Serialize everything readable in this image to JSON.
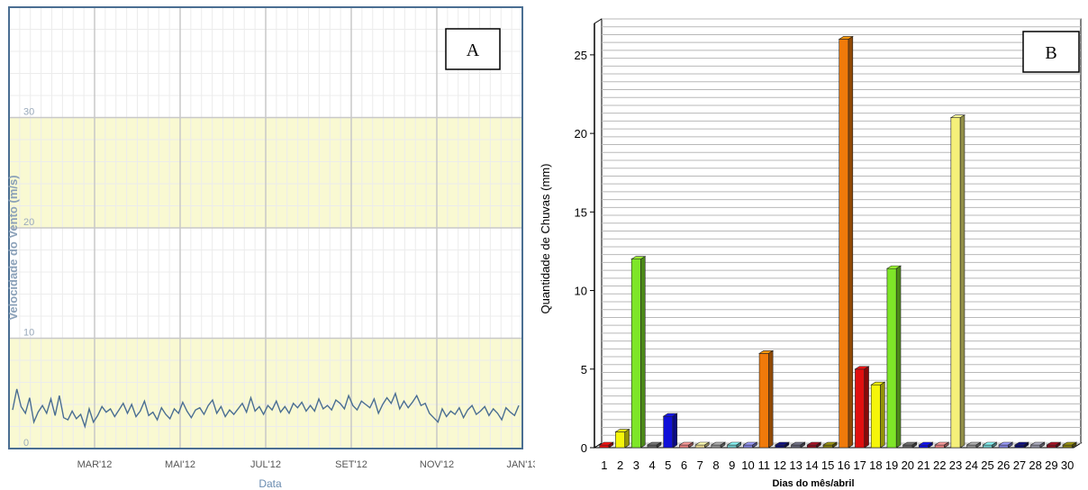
{
  "chart_data": [
    {
      "type": "line",
      "panel_label": "A",
      "xlabel": "Data",
      "ylabel": "Velocidade do Vento (m/s)",
      "ylim": [
        0,
        40
      ],
      "yticks": [
        "0",
        "10",
        "20",
        "30"
      ],
      "xticks": [
        "MAR'12",
        "MAI'12",
        "JUL'12",
        "SET'12",
        "NOV'12",
        "JAN'13"
      ],
      "xtick_positions_months": [
        2,
        4,
        6,
        8,
        10,
        12
      ],
      "x_range_months": [
        0,
        12
      ],
      "bands": [
        {
          "from": 0,
          "to": 10,
          "color": "#f9f9d2"
        },
        {
          "from": 20,
          "to": 30,
          "color": "#f9f9d2"
        }
      ],
      "grid": true,
      "line_color": "#4a6e92",
      "series": [
        {
          "values": [
            3.5,
            5.4,
            3.8,
            3.2,
            4.6,
            2.4,
            3.3,
            3.9,
            3.2,
            4.5,
            3.0,
            4.8,
            2.8,
            2.6,
            3.4,
            2.7,
            3.1,
            2.0,
            3.6,
            2.4,
            3.0,
            3.8,
            3.3,
            3.6,
            2.9,
            3.5,
            4.1,
            3.2,
            4.0,
            2.9,
            3.4,
            4.3,
            3.0,
            3.3,
            2.6,
            3.7,
            3.1,
            2.7,
            3.6,
            3.2,
            4.2,
            3.4,
            2.8,
            3.5,
            3.7,
            3.1,
            3.9,
            4.4,
            3.2,
            3.8,
            2.9,
            3.5,
            3.1,
            3.6,
            4.1,
            3.3,
            4.6,
            3.4,
            3.8,
            3.1,
            3.9,
            3.5,
            4.3,
            3.3,
            3.8,
            3.2,
            4.1,
            3.7,
            4.2,
            3.4,
            3.9,
            3.4,
            4.5,
            3.6,
            3.9,
            3.5,
            4.4,
            4.1,
            3.6,
            4.8,
            3.9,
            3.5,
            4.3,
            4.0,
            3.7,
            4.5,
            3.2,
            4.0,
            4.6,
            4.1,
            5.0,
            3.6,
            4.3,
            3.7,
            4.2,
            4.8,
            3.9,
            4.1,
            3.2,
            2.8,
            2.4,
            3.6,
            2.9,
            3.4,
            3.1,
            3.7,
            2.8,
            3.5,
            3.9,
            3.1,
            3.4,
            3.8,
            3.0,
            3.6,
            3.2,
            2.6,
            3.7,
            3.3,
            3.0,
            3.9
          ]
        }
      ]
    },
    {
      "type": "bar",
      "panel_label": "B",
      "xlabel": "Dias do mês/abril",
      "ylabel": "Quantidade de Chuvas (mm)",
      "ylim": [
        0,
        27
      ],
      "yticks": [
        0,
        5,
        10,
        15,
        20,
        25
      ],
      "grid": true,
      "categories": [
        "1",
        "2",
        "3",
        "4",
        "5",
        "6",
        "7",
        "8",
        "9",
        "10",
        "11",
        "12",
        "13",
        "14",
        "15",
        "16",
        "17",
        "18",
        "19",
        "20",
        "21",
        "22",
        "23",
        "24",
        "25",
        "26",
        "27",
        "28",
        "29",
        "30"
      ],
      "values": [
        0,
        1,
        12,
        0,
        2,
        0,
        0,
        0,
        0,
        0,
        6,
        0,
        0,
        0,
        0,
        26,
        5,
        4,
        11.4,
        0,
        0,
        0,
        21,
        0,
        0,
        0,
        0,
        0,
        0,
        0
      ],
      "colors": [
        "#e01010",
        "#f5f50a",
        "#7ee628",
        "#606060",
        "#1010d8",
        "#e88080",
        "#e8d890",
        "#909090",
        "#70c8c8",
        "#8080d8",
        "#f07a0a",
        "#10106a",
        "#606070",
        "#8a1020",
        "#807a10",
        "#f07a0a",
        "#e01010",
        "#f5f50a",
        "#7ee628",
        "#606060",
        "#1010d8",
        "#e88080",
        "#f5f07a",
        "#909090",
        "#70c8c8",
        "#8080d8",
        "#10106a",
        "#9090a0",
        "#8a1020",
        "#807a10"
      ]
    }
  ]
}
